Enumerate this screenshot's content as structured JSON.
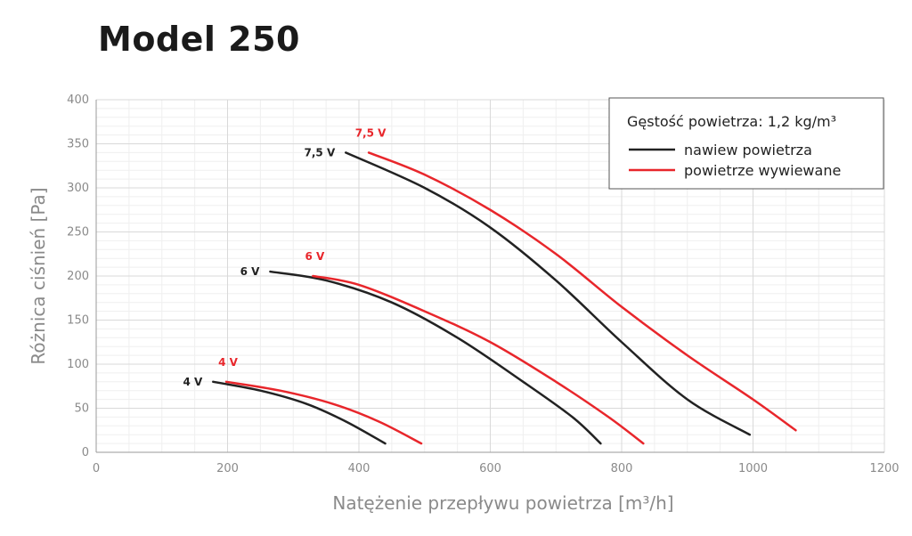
{
  "chart_data": {
    "type": "line",
    "title": "Model 250",
    "xlabel": "Natężenie przepływu powietrza [m³/h]",
    "ylabel": "Różnica ciśnień [Pa]",
    "xlim": [
      0,
      1200
    ],
    "ylim": [
      0,
      400
    ],
    "x_ticks": [
      "0",
      "200",
      "400",
      "600",
      "800",
      "1000",
      "1200"
    ],
    "y_ticks": [
      "0",
      "50",
      "100",
      "150",
      "200",
      "250",
      "300",
      "350",
      "400"
    ],
    "grid": true,
    "legend": {
      "title": "Gęstość powietrza: 1,2 kg/m³",
      "placement": "top-right",
      "entries": [
        {
          "name": "nawiew powietrza",
          "color": "#222222"
        },
        {
          "name": "powietrze wywiewane",
          "color": "#e8262b"
        }
      ]
    },
    "series": [
      {
        "name": "nawiew powietrza",
        "voltage": "7,5 V",
        "color": "#222222",
        "points": [
          [
            380,
            340
          ],
          [
            500,
            300
          ],
          [
            600,
            255
          ],
          [
            700,
            195
          ],
          [
            800,
            125
          ],
          [
            900,
            60
          ],
          [
            995,
            20
          ]
        ]
      },
      {
        "name": "powietrze wywiewane",
        "voltage": "7,5 V",
        "color": "#e8262b",
        "points": [
          [
            415,
            340
          ],
          [
            500,
            315
          ],
          [
            600,
            275
          ],
          [
            700,
            225
          ],
          [
            800,
            165
          ],
          [
            900,
            110
          ],
          [
            1000,
            60
          ],
          [
            1065,
            25
          ]
        ]
      },
      {
        "name": "nawiew powietrza",
        "voltage": "6 V",
        "color": "#222222",
        "points": [
          [
            265,
            205
          ],
          [
            350,
            195
          ],
          [
            450,
            170
          ],
          [
            550,
            130
          ],
          [
            650,
            80
          ],
          [
            725,
            40
          ],
          [
            768,
            10
          ]
        ]
      },
      {
        "name": "powietrze wywiewane",
        "voltage": "6 V",
        "color": "#e8262b",
        "points": [
          [
            330,
            200
          ],
          [
            400,
            190
          ],
          [
            500,
            160
          ],
          [
            600,
            125
          ],
          [
            700,
            80
          ],
          [
            780,
            40
          ],
          [
            833,
            10
          ]
        ]
      },
      {
        "name": "nawiew powietrza",
        "voltage": "4 V",
        "color": "#222222",
        "points": [
          [
            178,
            80
          ],
          [
            250,
            70
          ],
          [
            320,
            55
          ],
          [
            380,
            35
          ],
          [
            440,
            10
          ]
        ]
      },
      {
        "name": "powietrze wywiewane",
        "voltage": "4 V",
        "color": "#e8262b",
        "points": [
          [
            198,
            80
          ],
          [
            280,
            70
          ],
          [
            360,
            55
          ],
          [
            430,
            35
          ],
          [
            495,
            10
          ]
        ]
      }
    ]
  }
}
